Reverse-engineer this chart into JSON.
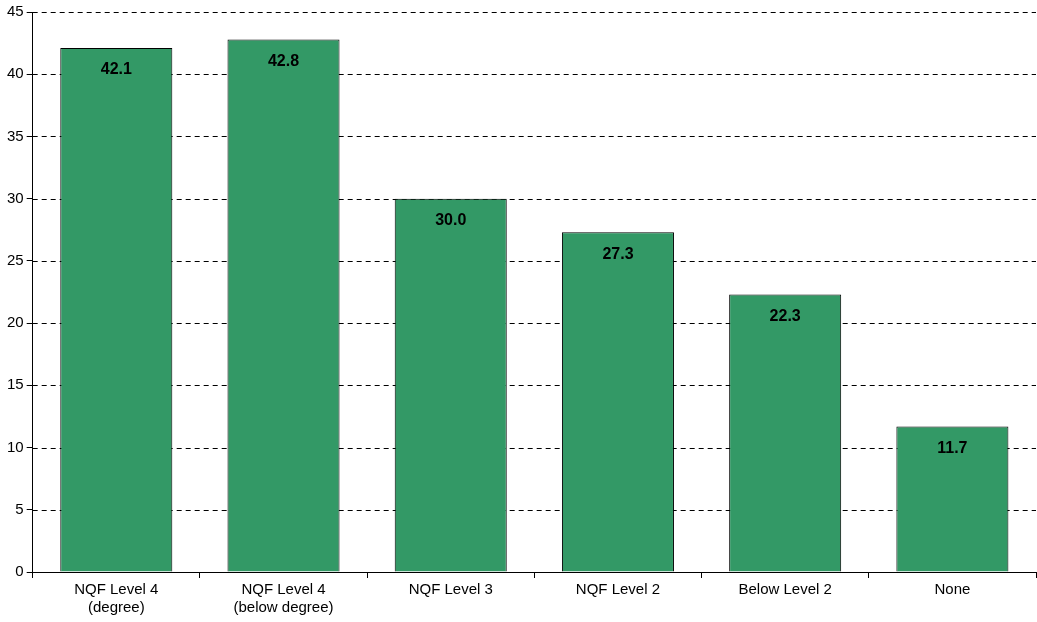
{
  "chart_data": {
    "type": "bar",
    "categories": [
      "NQF Level 4\n(degree)",
      "NQF Level 4\n(below degree)",
      "NQF Level 3",
      "NQF Level 2",
      "Below Level 2",
      "None"
    ],
    "values": [
      42.1,
      42.8,
      30.0,
      27.3,
      22.3,
      11.7
    ],
    "value_labels": [
      "42.1",
      "42.8",
      "30.0",
      "27.3",
      "22.3",
      "11.7"
    ],
    "color": "#339966",
    "ylim": [
      0,
      45
    ],
    "yticks": [
      0,
      5,
      10,
      15,
      20,
      25,
      30,
      35,
      40,
      45
    ],
    "grid": "y",
    "legend": false
  }
}
